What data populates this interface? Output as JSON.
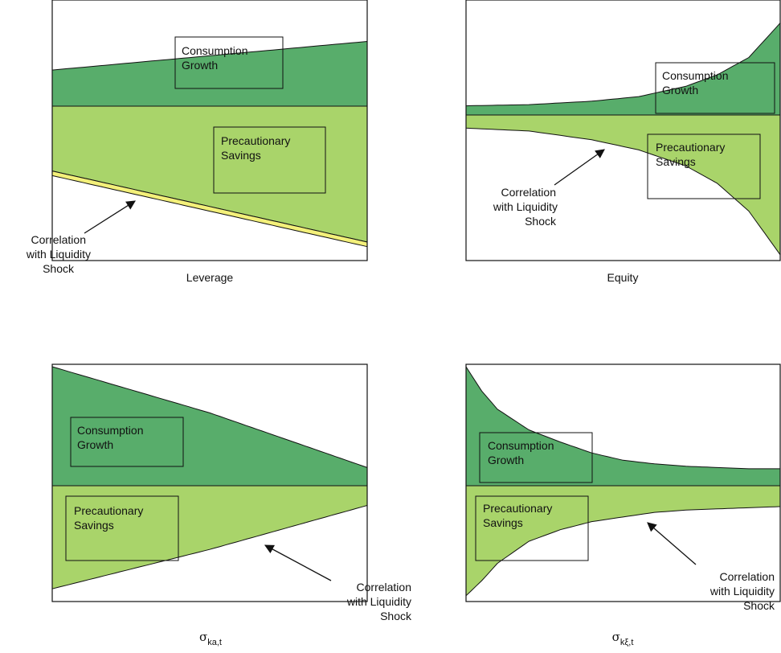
{
  "chart_data": [
    {
      "type": "area",
      "panel": "top-left",
      "xlabel": "Leverage",
      "bands": [
        {
          "name": "Consumption Growth",
          "label": [
            "Consumption",
            "Growth"
          ],
          "color": "#58ad6b",
          "lower": [
            [
              0,
              0
            ],
            [
              1,
              0
            ]
          ],
          "upper": [
            [
              0,
              0.34
            ],
            [
              1,
              0.61
            ]
          ]
        },
        {
          "name": "Precautionary Savings",
          "label": [
            "Precautionary",
            "Savings"
          ],
          "color": "#a9d46a",
          "lower": [
            [
              0,
              -0.42
            ],
            [
              1,
              -0.88
            ]
          ],
          "upper": [
            [
              0,
              0
            ],
            [
              1,
              0
            ]
          ]
        },
        {
          "name": "Correlation with Liquidity Shock",
          "label": [
            "Correlation",
            "with Liquidity",
            "Shock"
          ],
          "color": "#f3f07a",
          "lower": [
            [
              0,
              -0.45
            ],
            [
              1,
              -0.91
            ]
          ],
          "upper": [
            [
              0,
              -0.42
            ],
            [
              1,
              -0.88
            ]
          ]
        }
      ]
    },
    {
      "type": "area",
      "panel": "top-right",
      "xlabel": "Equity",
      "bands": [
        {
          "name": "Consumption Growth",
          "label": [
            "Consumption",
            "Growth"
          ],
          "color": "#58ad6b",
          "lower": [
            [
              0,
              0
            ],
            [
              1,
              0
            ]
          ],
          "upper": [
            [
              0,
              0.08
            ],
            [
              0.2,
              0.09
            ],
            [
              0.4,
              0.12
            ],
            [
              0.55,
              0.16
            ],
            [
              0.7,
              0.25
            ],
            [
              0.8,
              0.35
            ],
            [
              0.9,
              0.5
            ],
            [
              1,
              0.8
            ]
          ]
        },
        {
          "name": "Precautionary Savings",
          "label": [
            "Precautionary",
            "Savings"
          ],
          "color": "#a9d46a",
          "lower": [
            [
              0,
              -0.09
            ],
            [
              0.2,
              -0.11
            ],
            [
              0.4,
              -0.17
            ],
            [
              0.55,
              -0.24
            ],
            [
              0.7,
              -0.35
            ],
            [
              0.8,
              -0.47
            ],
            [
              0.9,
              -0.66
            ],
            [
              1,
              -0.96
            ]
          ],
          "upper": [
            [
              0,
              0
            ],
            [
              1,
              0
            ]
          ]
        }
      ]
    },
    {
      "type": "area",
      "panel": "bottom-left",
      "xlabel": "σ",
      "xlabel_sub": "ka,t",
      "bands": [
        {
          "name": "Consumption Growth",
          "label": [
            "Consumption",
            "Growth"
          ],
          "color": "#58ad6b",
          "lower": [
            [
              0,
              0
            ],
            [
              1,
              0
            ]
          ],
          "upper": [
            [
              0,
              0.98
            ],
            [
              0.5,
              0.6
            ],
            [
              1,
              0.15
            ]
          ]
        },
        {
          "name": "Precautionary Savings",
          "label": [
            "Precautionary",
            "Savings"
          ],
          "color": "#a9d46a",
          "lower": [
            [
              0,
              -0.89
            ],
            [
              0.5,
              -0.55
            ],
            [
              1,
              -0.17
            ]
          ],
          "upper": [
            [
              0,
              0
            ],
            [
              1,
              0
            ]
          ]
        }
      ]
    },
    {
      "type": "area",
      "panel": "bottom-right",
      "xlabel": "σ",
      "xlabel_sub": "kξ,t",
      "bands": [
        {
          "name": "Consumption Growth",
          "label": [
            "Consumption",
            "Growth"
          ],
          "color": "#58ad6b",
          "lower": [
            [
              0,
              0
            ],
            [
              1,
              0
            ]
          ],
          "upper": [
            [
              0,
              0.98
            ],
            [
              0.05,
              0.78
            ],
            [
              0.1,
              0.63
            ],
            [
              0.2,
              0.46
            ],
            [
              0.3,
              0.36
            ],
            [
              0.4,
              0.27
            ],
            [
              0.5,
              0.21
            ],
            [
              0.6,
              0.18
            ],
            [
              0.7,
              0.16
            ],
            [
              0.8,
              0.15
            ],
            [
              0.9,
              0.14
            ],
            [
              1,
              0.14
            ]
          ]
        },
        {
          "name": "Precautionary Savings",
          "label": [
            "Precautionary",
            "Savings"
          ],
          "color": "#a9d46a",
          "lower": [
            [
              0,
              -0.95
            ],
            [
              0.05,
              -0.82
            ],
            [
              0.1,
              -0.67
            ],
            [
              0.2,
              -0.48
            ],
            [
              0.3,
              -0.38
            ],
            [
              0.4,
              -0.31
            ],
            [
              0.5,
              -0.27
            ],
            [
              0.6,
              -0.23
            ],
            [
              0.7,
              -0.21
            ],
            [
              0.8,
              -0.2
            ],
            [
              0.9,
              -0.19
            ],
            [
              1,
              -0.18
            ]
          ],
          "upper": [
            [
              0,
              0
            ],
            [
              1,
              0
            ]
          ]
        }
      ]
    }
  ]
}
